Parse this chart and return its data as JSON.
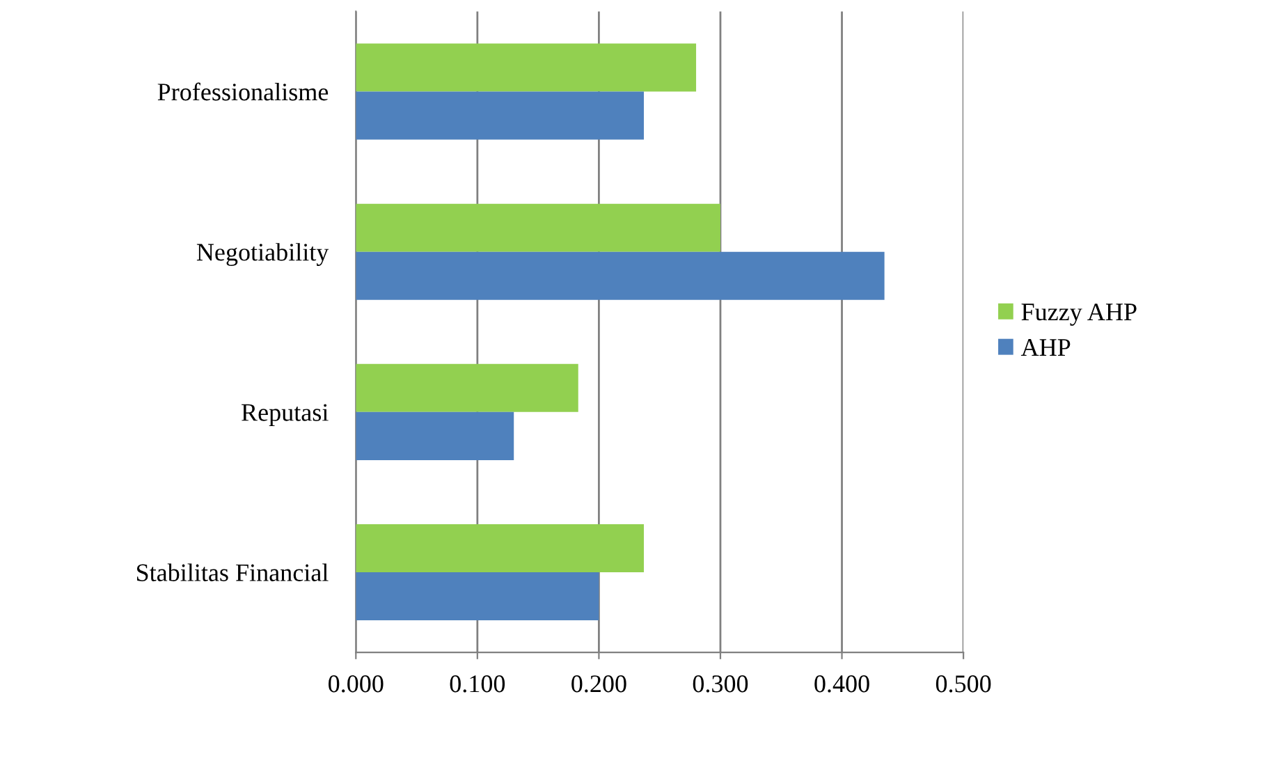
{
  "chart_data": {
    "type": "bar",
    "orientation": "horizontal",
    "categories": [
      "Professionalisme",
      "Negotiability",
      "Reputasi",
      "Stabilitas Financial"
    ],
    "series": [
      {
        "name": "Fuzzy AHP",
        "color": "#92d050",
        "values": [
          0.28,
          0.3,
          0.183,
          0.237
        ]
      },
      {
        "name": "AHP",
        "color": "#4f81bd",
        "values": [
          0.237,
          0.435,
          0.13,
          0.2
        ]
      }
    ],
    "xlim": [
      0,
      0.5
    ],
    "xticks": [
      {
        "value": 0,
        "label": "0.000"
      },
      {
        "value": 0.1,
        "label": "0.100"
      },
      {
        "value": 0.2,
        "label": "0.200"
      },
      {
        "value": 0.3,
        "label": "0.300"
      },
      {
        "value": 0.4,
        "label": "0.400"
      },
      {
        "value": 0.5,
        "label": "0.500"
      }
    ],
    "grid": "x",
    "legend": "right"
  }
}
